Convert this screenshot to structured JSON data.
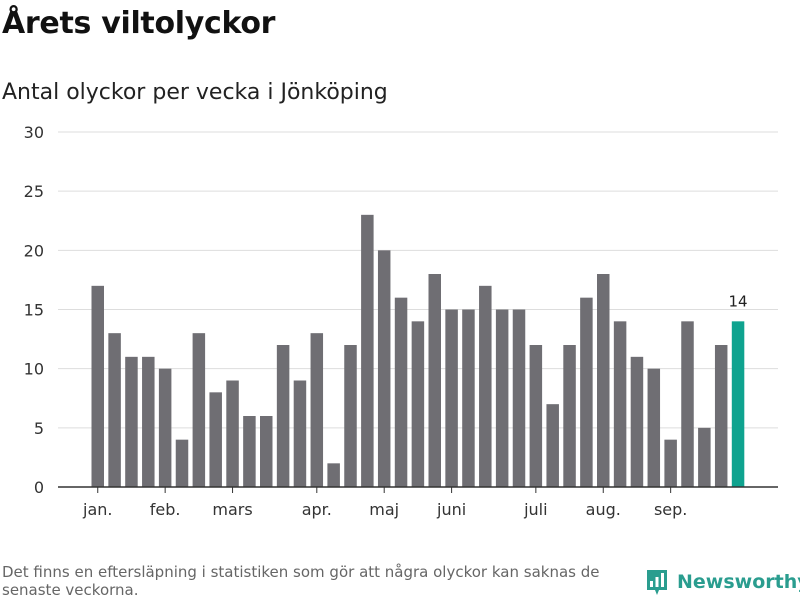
{
  "header": {
    "title": "Årets viltolyckor",
    "subtitle": "Antal olyckor per vecka i Jönköping"
  },
  "footer": {
    "note": "Det finns en eftersläpning i statistiken som gör att några olyckor kan saknas de senaste veckorna.",
    "brand": "Newsworthy",
    "brand_icon": "chart-bubble-icon"
  },
  "colors": {
    "bar": "#6f6e73",
    "highlight": "#0fa38f",
    "grid": "#dddddd",
    "axis": "#333333",
    "brand": "#2a9d8f"
  },
  "chart_data": {
    "type": "bar",
    "title": "Årets viltolyckor",
    "subtitle": "Antal olyckor per vecka i Jönköping",
    "xlabel": "",
    "ylabel": "",
    "ylim": [
      0,
      30
    ],
    "yticks": [
      "0",
      "5",
      "10",
      "15",
      "20",
      "25",
      "30"
    ],
    "grid": true,
    "values": [
      17,
      13,
      11,
      11,
      10,
      4,
      13,
      8,
      9,
      6,
      6,
      12,
      9,
      13,
      2,
      12,
      23,
      20,
      16,
      14,
      18,
      15,
      15,
      17,
      15,
      15,
      12,
      7,
      12,
      16,
      18,
      14,
      11,
      10,
      4,
      14,
      5,
      12,
      14
    ],
    "month_labels": [
      {
        "label": "jan.",
        "bar": 0
      },
      {
        "label": "feb.",
        "bar": 4
      },
      {
        "label": "mars",
        "bar": 8
      },
      {
        "label": "apr.",
        "bar": 13
      },
      {
        "label": "maj",
        "bar": 17
      },
      {
        "label": "juni",
        "bar": 21
      },
      {
        "label": "juli",
        "bar": 26
      },
      {
        "label": "aug.",
        "bar": 30
      },
      {
        "label": "sep.",
        "bar": 34
      }
    ],
    "highlight_index": 38,
    "highlight_label": "14"
  }
}
